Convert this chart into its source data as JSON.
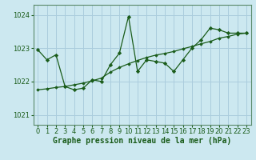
{
  "title": "Graphe pression niveau de la mer (hPa)",
  "background_color": "#cce8f0",
  "grid_color": "#aaccdd",
  "line_color": "#1a5c1a",
  "marker_color": "#1a5c1a",
  "xlim": [
    -0.5,
    23.5
  ],
  "ylim": [
    1020.7,
    1024.3
  ],
  "yticks": [
    1021,
    1022,
    1023,
    1024
  ],
  "xticks": [
    0,
    1,
    2,
    3,
    4,
    5,
    6,
    7,
    8,
    9,
    10,
    11,
    12,
    13,
    14,
    15,
    16,
    17,
    18,
    19,
    20,
    21,
    22,
    23
  ],
  "series1_x": [
    0,
    1,
    2,
    3,
    4,
    5,
    6,
    7,
    8,
    9,
    10,
    11,
    12,
    13,
    14,
    15,
    16,
    17,
    18,
    19,
    20,
    21,
    22,
    23
  ],
  "series1_y": [
    1022.95,
    1022.65,
    1022.8,
    1021.85,
    1021.75,
    1021.8,
    1022.05,
    1022.0,
    1022.5,
    1022.85,
    1023.95,
    1022.3,
    1022.65,
    1022.6,
    1022.55,
    1022.3,
    1022.65,
    1023.0,
    1023.25,
    1023.6,
    1023.55,
    1023.45,
    1023.45,
    1023.45
  ],
  "series2_x": [
    0,
    1,
    2,
    3,
    4,
    5,
    6,
    7,
    8,
    9,
    10,
    11,
    12,
    13,
    14,
    15,
    16,
    17,
    18,
    19,
    20,
    21,
    22,
    23
  ],
  "series2_y": [
    1021.75,
    1021.78,
    1021.82,
    1021.85,
    1021.9,
    1021.95,
    1022.02,
    1022.1,
    1022.28,
    1022.42,
    1022.53,
    1022.63,
    1022.72,
    1022.79,
    1022.84,
    1022.9,
    1022.98,
    1023.05,
    1023.13,
    1023.2,
    1023.3,
    1023.35,
    1023.42,
    1023.45
  ],
  "title_fontsize": 7,
  "tick_fontsize": 6
}
